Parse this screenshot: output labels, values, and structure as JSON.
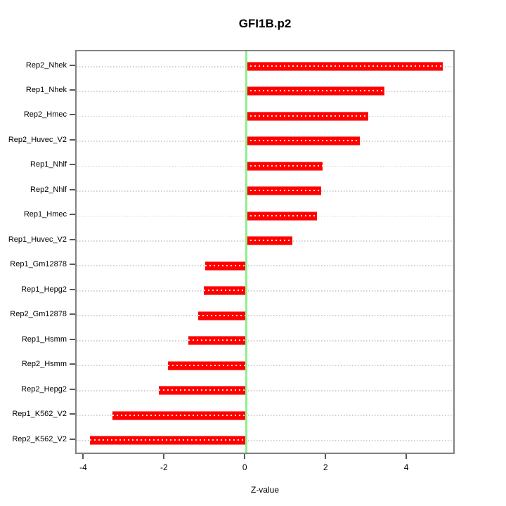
{
  "chart_data": {
    "type": "bar",
    "orientation": "horizontal",
    "title": "GFI1B.p2",
    "xlabel": "Z-value",
    "ylabel": "",
    "legend": "none",
    "grid": "dotted horizontal line per category, full plot width",
    "categories": [
      "Rep2_Nhek",
      "Rep1_Nhek",
      "Rep2_Hmec",
      "Rep2_Huvec_V2",
      "Rep1_Nhlf",
      "Rep2_Nhlf",
      "Rep1_Hmec",
      "Rep1_Huvec_V2",
      "Rep1_Gm12878",
      "Rep1_Hepg2",
      "Rep2_Gm12878",
      "Rep1_Hsmm",
      "Rep2_Hsmm",
      "Rep2_Hepg2",
      "Rep1_K562_V2",
      "Rep2_K562_V2"
    ],
    "values": [
      4.87,
      3.42,
      3.02,
      2.81,
      1.89,
      1.85,
      1.75,
      1.14,
      -1.01,
      -1.05,
      -1.19,
      -1.43,
      -1.93,
      -2.16,
      -3.31,
      -3.87
    ],
    "xticks": [
      -4,
      -2,
      0,
      2,
      4
    ],
    "xlim": [
      -4.2,
      5.2
    ],
    "zero_reference_line": 0,
    "colors": {
      "bar": "#ff0000",
      "bar_center_dots": "rgba(255,255,255,0.85)",
      "zero_line": "#8ef08e",
      "gridline": "#cfcfcf",
      "frame": "#828282",
      "tick": "#5a5a5a",
      "text": "#000000"
    }
  }
}
